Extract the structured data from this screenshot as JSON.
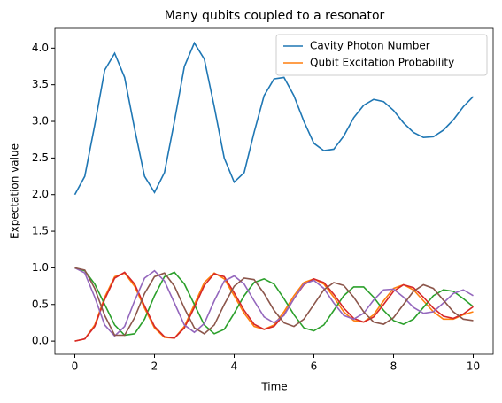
{
  "chart_data": {
    "type": "line",
    "title": "Many qubits coupled to a resonator",
    "x_label": "Time",
    "y_label": "Expectation value",
    "x": [
      0,
      0.25,
      0.5,
      0.75,
      1,
      1.25,
      1.5,
      1.75,
      2,
      2.25,
      2.5,
      2.75,
      3,
      3.25,
      3.5,
      3.75,
      4,
      4.25,
      4.5,
      4.75,
      5,
      5.25,
      5.5,
      5.75,
      6,
      6.25,
      6.5,
      6.75,
      7,
      7.25,
      7.5,
      7.75,
      8,
      8.25,
      8.5,
      8.75,
      9,
      9.25,
      9.5,
      9.75,
      10
    ],
    "series": [
      {
        "name": "Cavity Photon Number",
        "color": "#1f77b4",
        "values": [
          2.0,
          2.25,
          2.95,
          3.7,
          3.93,
          3.6,
          2.9,
          2.25,
          2.03,
          2.3,
          3.0,
          3.75,
          4.07,
          3.85,
          3.2,
          2.5,
          2.17,
          2.3,
          2.85,
          3.35,
          3.58,
          3.6,
          3.35,
          3.0,
          2.7,
          2.6,
          2.62,
          2.8,
          3.05,
          3.22,
          3.3,
          3.27,
          3.15,
          2.98,
          2.85,
          2.78,
          2.79,
          2.88,
          3.02,
          3.2,
          3.34
        ]
      },
      {
        "name": "Qubit Excitation Probability",
        "color": "#ff7f0e",
        "values": [
          0,
          0.03,
          0.22,
          0.6,
          0.88,
          0.93,
          0.75,
          0.45,
          0.18,
          0.05,
          0.04,
          0.2,
          0.5,
          0.8,
          0.93,
          0.85,
          0.62,
          0.38,
          0.2,
          0.16,
          0.22,
          0.4,
          0.62,
          0.8,
          0.85,
          0.78,
          0.6,
          0.4,
          0.28,
          0.26,
          0.36,
          0.55,
          0.72,
          0.77,
          0.7,
          0.55,
          0.4,
          0.3,
          0.3,
          0.36,
          0.4
        ]
      },
      {
        "color": "#2ca02c",
        "values": [
          1.0,
          0.96,
          0.78,
          0.5,
          0.22,
          0.08,
          0.1,
          0.3,
          0.62,
          0.88,
          0.94,
          0.78,
          0.5,
          0.22,
          0.1,
          0.16,
          0.38,
          0.62,
          0.8,
          0.85,
          0.78,
          0.58,
          0.36,
          0.18,
          0.14,
          0.22,
          0.42,
          0.62,
          0.74,
          0.74,
          0.6,
          0.42,
          0.28,
          0.23,
          0.3,
          0.46,
          0.62,
          0.7,
          0.68,
          0.58,
          0.47
        ]
      },
      {
        "color": "#d62728",
        "values": [
          0,
          0.03,
          0.2,
          0.57,
          0.86,
          0.94,
          0.78,
          0.48,
          0.2,
          0.06,
          0.04,
          0.18,
          0.46,
          0.76,
          0.92,
          0.88,
          0.66,
          0.42,
          0.23,
          0.16,
          0.2,
          0.36,
          0.58,
          0.77,
          0.85,
          0.8,
          0.64,
          0.45,
          0.31,
          0.26,
          0.33,
          0.5,
          0.68,
          0.77,
          0.73,
          0.6,
          0.45,
          0.34,
          0.31,
          0.37,
          0.47
        ]
      },
      {
        "color": "#9467bd",
        "values": [
          1.0,
          0.93,
          0.6,
          0.22,
          0.07,
          0.2,
          0.55,
          0.86,
          0.96,
          0.82,
          0.52,
          0.22,
          0.12,
          0.24,
          0.55,
          0.82,
          0.89,
          0.78,
          0.55,
          0.33,
          0.25,
          0.35,
          0.58,
          0.78,
          0.83,
          0.72,
          0.52,
          0.35,
          0.3,
          0.38,
          0.56,
          0.7,
          0.71,
          0.6,
          0.46,
          0.38,
          0.4,
          0.52,
          0.65,
          0.7,
          0.62
        ]
      },
      {
        "color": "#8c564b",
        "values": [
          1.0,
          0.97,
          0.72,
          0.35,
          0.08,
          0.08,
          0.32,
          0.65,
          0.88,
          0.93,
          0.75,
          0.45,
          0.18,
          0.1,
          0.22,
          0.5,
          0.75,
          0.86,
          0.84,
          0.65,
          0.42,
          0.25,
          0.2,
          0.3,
          0.5,
          0.7,
          0.8,
          0.76,
          0.6,
          0.4,
          0.26,
          0.23,
          0.32,
          0.5,
          0.68,
          0.77,
          0.72,
          0.56,
          0.4,
          0.3,
          0.28
        ]
      }
    ],
    "xlim": [
      -0.5,
      10.5
    ],
    "ylim": [
      -0.18,
      4.27
    ],
    "xticks": [
      0,
      2,
      4,
      6,
      8,
      10
    ],
    "yticks": [
      {
        "value": 0,
        "label": "0.0"
      },
      {
        "value": 0.5,
        "label": "0.5"
      },
      {
        "value": 1,
        "label": "1.0"
      },
      {
        "value": 1.5,
        "label": "1.5"
      },
      {
        "value": 2,
        "label": "2.0"
      },
      {
        "value": 2.5,
        "label": "2.5"
      },
      {
        "value": 3,
        "label": "3.0"
      },
      {
        "value": 3.5,
        "label": "3.5"
      },
      {
        "value": 4,
        "label": "4.0"
      }
    ],
    "legend": "upper right",
    "grid": false
  }
}
